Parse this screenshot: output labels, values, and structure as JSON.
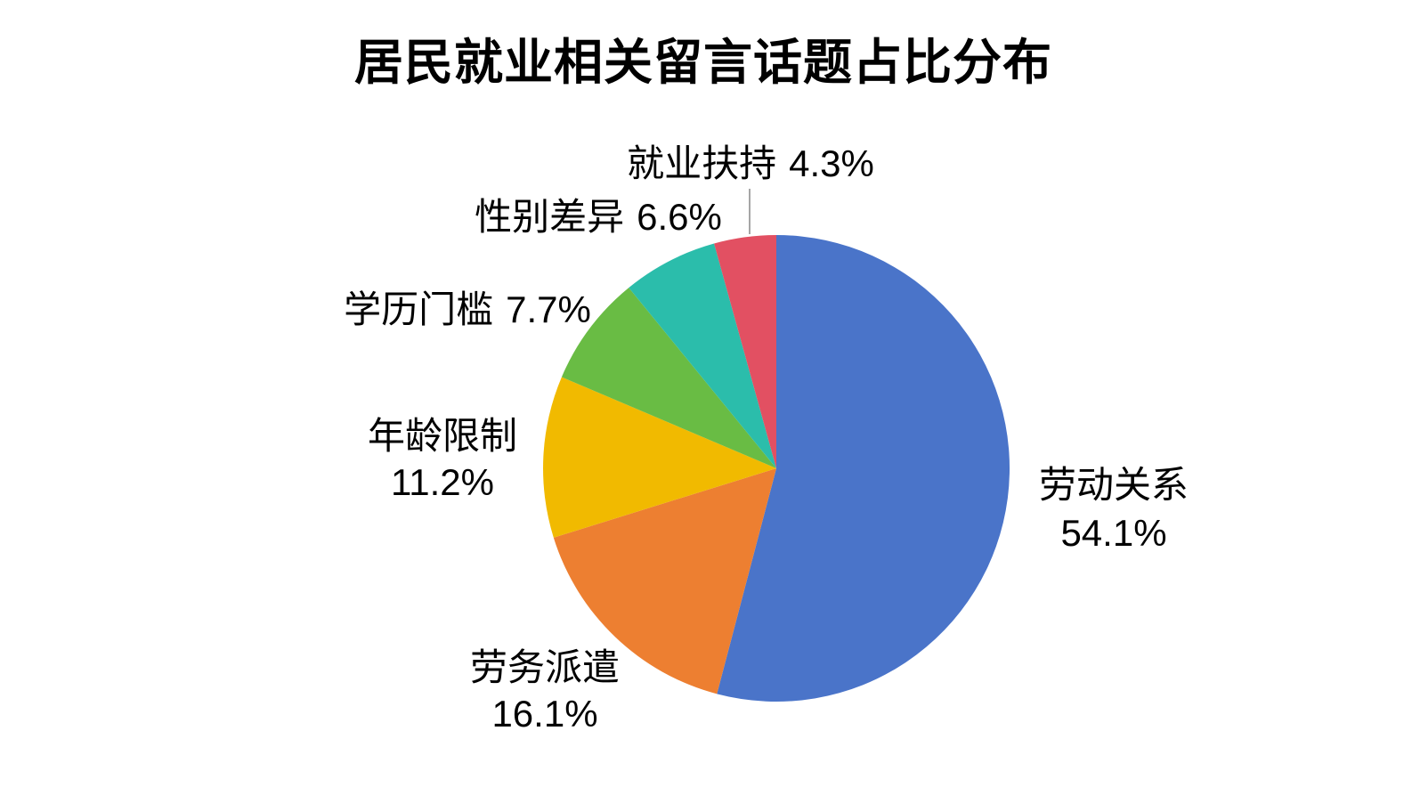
{
  "title": "居民就业相关留言话题占比分布",
  "chart_data": {
    "type": "pie",
    "title": "居民就业相关留言话题占比分布",
    "start_angle": "12-oclock",
    "direction": "clockwise",
    "legend": "none",
    "slices": [
      {
        "label": "劳动关系",
        "value": 54.1,
        "pct_text": "54.1%",
        "color": "#4A74C9"
      },
      {
        "label": "劳务派遣",
        "value": 16.1,
        "pct_text": "16.1%",
        "color": "#ED7F31"
      },
      {
        "label": "年龄限制",
        "value": 11.2,
        "pct_text": "11.2%",
        "color": "#F1BA00"
      },
      {
        "label": "学历门槛",
        "value": 7.7,
        "pct_text": "7.7%",
        "color": "#69BC44"
      },
      {
        "label": "性别差异",
        "value": 6.6,
        "pct_text": "6.6%",
        "color": "#2BBDAB"
      },
      {
        "label": "就业扶持",
        "value": 4.3,
        "pct_text": "4.3%",
        "color": "#E25062"
      }
    ],
    "leader_line_color": "#A6A6A6"
  }
}
